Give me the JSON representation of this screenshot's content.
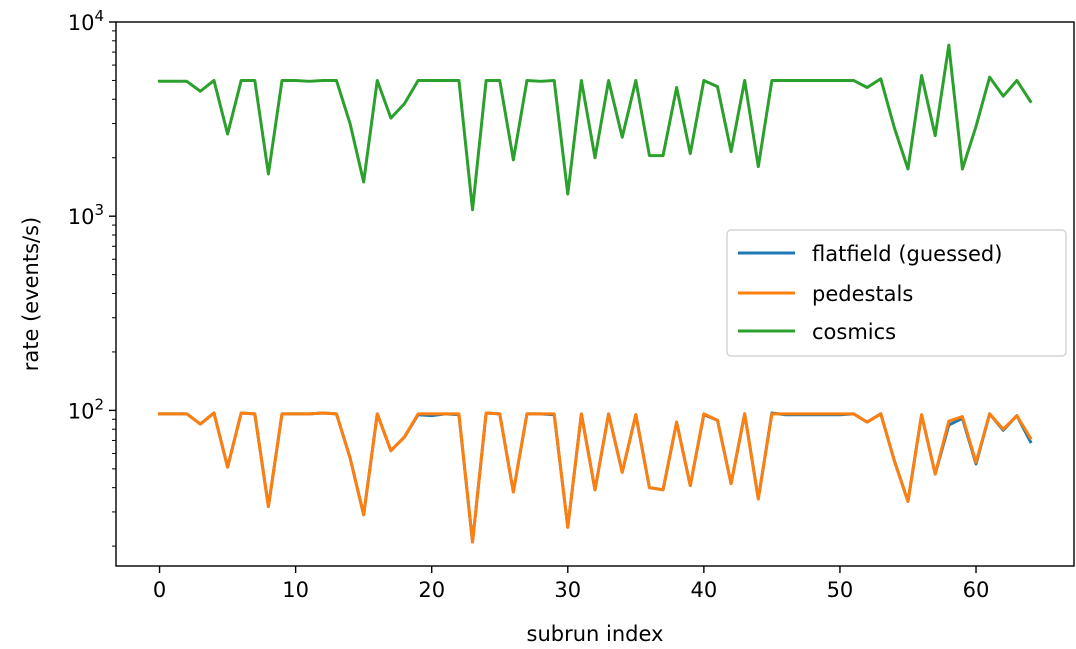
{
  "chart_data": {
    "type": "line",
    "xlabel": "subrun index",
    "ylabel": "rate (events/s)",
    "yscale": "log",
    "xlim": [
      -3.2,
      67.2
    ],
    "ylim": [
      15.8,
      10000
    ],
    "xticks": [
      0,
      10,
      20,
      30,
      40,
      50,
      60
    ],
    "yticks": [
      {
        "value": 100,
        "base": "10",
        "exp": "2"
      },
      {
        "value": 1000,
        "base": "10",
        "exp": "3"
      },
      {
        "value": 10000,
        "base": "10",
        "exp": "4"
      }
    ],
    "grid": false,
    "legend_position": "center-right",
    "x": [
      0,
      1,
      2,
      3,
      4,
      5,
      6,
      7,
      8,
      9,
      10,
      11,
      12,
      13,
      14,
      15,
      16,
      17,
      18,
      19,
      20,
      21,
      22,
      23,
      24,
      25,
      26,
      27,
      28,
      29,
      30,
      31,
      32,
      33,
      34,
      35,
      36,
      37,
      38,
      39,
      40,
      41,
      42,
      43,
      44,
      45,
      46,
      47,
      48,
      49,
      50,
      51,
      52,
      53,
      54,
      55,
      56,
      57,
      58,
      59,
      60,
      61,
      62,
      63,
      64
    ],
    "series": [
      {
        "name": "flatfield (guessed)",
        "color": "#1f77b4",
        "values": [
          96,
          96,
          96,
          85,
          97,
          51,
          97,
          96,
          32,
          96,
          96,
          96,
          97,
          96,
          57,
          29,
          96,
          62,
          73,
          95,
          94,
          96,
          95,
          21,
          97,
          96,
          38,
          96,
          96,
          95,
          25,
          96,
          39,
          96,
          48,
          95,
          40,
          39,
          87,
          41,
          95,
          89,
          42,
          96,
          35,
          97,
          95,
          95,
          95,
          95,
          95,
          96,
          87,
          96,
          55,
          34,
          95,
          47,
          84,
          91,
          53,
          96,
          79,
          94,
          69
        ]
      },
      {
        "name": "pedestals",
        "color": "#ff7f0e",
        "values": [
          96,
          96,
          96,
          85,
          97,
          51,
          97,
          96,
          32,
          96,
          96,
          96,
          97,
          96,
          57,
          29,
          96,
          62,
          73,
          96,
          96,
          96,
          96,
          21,
          97,
          96,
          38,
          96,
          96,
          96,
          25,
          96,
          39,
          96,
          48,
          95,
          40,
          39,
          87,
          41,
          96,
          89,
          42,
          96,
          35,
          96,
          96,
          96,
          96,
          96,
          96,
          96,
          87,
          96,
          55,
          34,
          95,
          47,
          88,
          93,
          54,
          96,
          80,
          94,
          72
        ]
      },
      {
        "name": "cosmics",
        "color": "#2ca02c",
        "values": [
          4950,
          4950,
          4950,
          4400,
          5000,
          2650,
          5000,
          5000,
          1650,
          5000,
          5000,
          4950,
          5000,
          5000,
          3000,
          1500,
          5000,
          3200,
          3800,
          5000,
          5000,
          5000,
          5000,
          1080,
          5000,
          5000,
          1950,
          5000,
          4950,
          5000,
          1300,
          5000,
          2000,
          5000,
          2550,
          5000,
          2050,
          2050,
          4600,
          2100,
          5000,
          4650,
          2150,
          5000,
          1800,
          5000,
          5000,
          5000,
          5000,
          5000,
          5000,
          5000,
          4600,
          5100,
          2850,
          1750,
          5300,
          2600,
          7600,
          1750,
          2900,
          5200,
          4150,
          5000,
          3900
        ]
      }
    ]
  }
}
